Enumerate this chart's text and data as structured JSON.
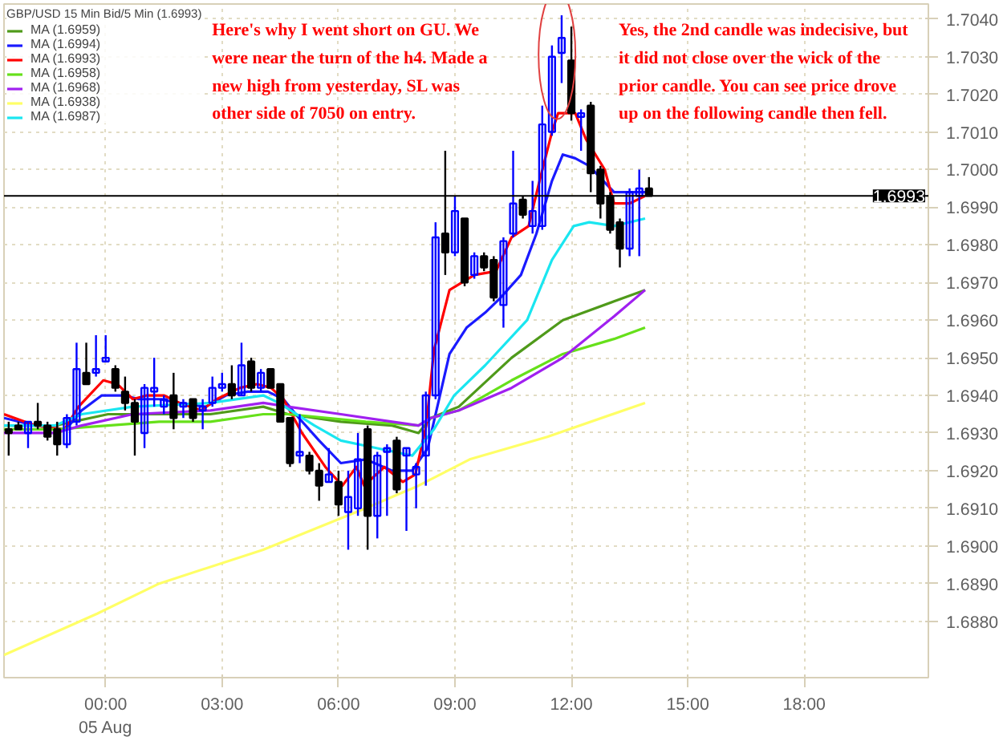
{
  "chart_data": {
    "type": "candlestick",
    "title": "GBP/USD 15 Min Bid/5 Min (1.6993)",
    "x": [
      -2.5,
      -2.25,
      -2,
      -1.75,
      -1.5,
      -1.25,
      -1,
      -0.75,
      -0.5,
      -0.25,
      0,
      0.25,
      0.5,
      0.75,
      1,
      1.25,
      1.5,
      1.75,
      2,
      2.25,
      2.5,
      2.75,
      3,
      3.25,
      3.5,
      3.75,
      4,
      4.25,
      4.5,
      4.75,
      5,
      5.25,
      5.5,
      5.75,
      6,
      6.25,
      6.5,
      6.75,
      7,
      7.25,
      7.5,
      7.75,
      8,
      8.25,
      8.5,
      8.75,
      9,
      9.25,
      9.5,
      9.75,
      10,
      10.25,
      10.5,
      10.75,
      11,
      11.25,
      11.5,
      11.75,
      12,
      12.25,
      12.5,
      12.75,
      13,
      13.25,
      13.5,
      13.75,
      14
    ],
    "ohlc": [
      [
        1.6931,
        1.6933,
        1.6924,
        1.693
      ],
      [
        1.6932,
        1.6933,
        1.6931,
        1.6931
      ],
      [
        1.693,
        1.6933,
        1.6926,
        1.6933
      ],
      [
        1.6933,
        1.6938,
        1.6931,
        1.6932
      ],
      [
        1.6932,
        1.6933,
        1.6928,
        1.6929
      ],
      [
        1.6931,
        1.6933,
        1.6924,
        1.6927
      ],
      [
        1.6927,
        1.6935,
        1.6926,
        1.6934
      ],
      [
        1.6933,
        1.6954,
        1.6932,
        1.6947
      ],
      [
        1.6946,
        1.6954,
        1.6943,
        1.6943
      ],
      [
        1.6946,
        1.6956,
        1.6945,
        1.6947
      ],
      [
        1.6949,
        1.6956,
        1.6949,
        1.695
      ],
      [
        1.6947,
        1.6948,
        1.6941,
        1.6942
      ],
      [
        1.6941,
        1.6945,
        1.6936,
        1.6938
      ],
      [
        1.6938,
        1.6939,
        1.6924,
        1.6933
      ],
      [
        1.693,
        1.6943,
        1.6926,
        1.6942
      ],
      [
        1.6941,
        1.695,
        1.6937,
        1.6942
      ],
      [
        1.6937,
        1.694,
        1.6935,
        1.6939
      ],
      [
        1.694,
        1.6946,
        1.6931,
        1.6934
      ],
      [
        1.6937,
        1.6939,
        1.6934,
        1.6938
      ],
      [
        1.6939,
        1.6939,
        1.6933,
        1.6934
      ],
      [
        1.6936,
        1.6939,
        1.6931,
        1.6937
      ],
      [
        1.6938,
        1.6945,
        1.6937,
        1.6942
      ],
      [
        1.6942,
        1.6946,
        1.6941,
        1.6943
      ],
      [
        1.6943,
        1.6948,
        1.6939,
        1.694
      ],
      [
        1.694,
        1.6954,
        1.694,
        1.6948
      ],
      [
        1.6949,
        1.695,
        1.6941,
        1.6942
      ],
      [
        1.6942,
        1.6947,
        1.6941,
        1.6946
      ],
      [
        1.6947,
        1.6947,
        1.6942,
        1.6942
      ],
      [
        1.6943,
        1.6943,
        1.6933,
        1.6933
      ],
      [
        1.6934,
        1.6934,
        1.6921,
        1.6922
      ],
      [
        1.6924,
        1.6935,
        1.6922,
        1.6925
      ],
      [
        1.6924,
        1.6925,
        1.6919,
        1.692
      ],
      [
        1.692,
        1.6922,
        1.6912,
        1.6916
      ],
      [
        1.6917,
        1.6926,
        1.6917,
        1.6919
      ],
      [
        1.6917,
        1.692,
        1.6908,
        1.6911
      ],
      [
        1.6909,
        1.692,
        1.6899,
        1.6913
      ],
      [
        1.691,
        1.693,
        1.6908,
        1.6923
      ],
      [
        1.6931,
        1.6932,
        1.6899,
        1.6908
      ],
      [
        1.6908,
        1.6925,
        1.6902,
        1.6924
      ],
      [
        1.6925,
        1.6927,
        1.6908,
        1.6926
      ],
      [
        1.6928,
        1.6929,
        1.6914,
        1.6915
      ],
      [
        1.6924,
        1.6926,
        1.6904,
        1.6926
      ],
      [
        1.6919,
        1.6922,
        1.691,
        1.6921
      ],
      [
        1.6924,
        1.6941,
        1.6916,
        1.694
      ],
      [
        1.694,
        1.6986,
        1.6939,
        1.6982
      ],
      [
        1.6983,
        1.7005,
        1.6972,
        1.6978
      ],
      [
        1.6978,
        1.6993,
        1.6977,
        1.6989
      ],
      [
        1.6987,
        1.6987,
        1.6969,
        1.697
      ],
      [
        1.6972,
        1.6978,
        1.6971,
        1.6977
      ],
      [
        1.6977,
        1.6978,
        1.6973,
        1.6974
      ],
      [
        1.6976,
        1.6977,
        1.6965,
        1.6966
      ],
      [
        1.6964,
        1.6982,
        1.6958,
        1.6981
      ],
      [
        1.6983,
        1.7005,
        1.6982,
        1.6991
      ],
      [
        1.6992,
        1.6993,
        1.6987,
        1.6988
      ],
      [
        1.6985,
        1.6997,
        1.6983,
        1.6989
      ],
      [
        1.6985,
        1.7017,
        1.6984,
        1.7012
      ],
      [
        1.701,
        1.7033,
        1.7009,
        1.703
      ],
      [
        1.7031,
        1.7041,
        1.7023,
        1.7035
      ],
      [
        1.7029,
        1.7038,
        1.7013,
        1.7015
      ],
      [
        1.7014,
        1.7016,
        1.7005,
        1.7015
      ],
      [
        1.7017,
        1.7018,
        1.6994,
        1.6999
      ],
      [
        1.7,
        1.7001,
        1.6987,
        1.6991
      ],
      [
        1.6993,
        1.6994,
        1.6983,
        1.6984
      ],
      [
        1.6986,
        1.6987,
        1.6974,
        1.6979
      ],
      [
        1.6979,
        1.6995,
        1.6977,
        1.6994
      ],
      [
        1.6993,
        1.7,
        1.6977,
        1.6995
      ],
      [
        1.6995,
        1.6998,
        1.6993,
        1.6993
      ]
    ],
    "colors": [
      "#000000",
      "#000000",
      "#0000ff",
      "#000000",
      "#000000",
      "#000000",
      "#0000ff",
      "#0000ff",
      "#000000",
      "#0000ff",
      "#0000ff",
      "#000000",
      "#000000",
      "#000000",
      "#0000ff",
      "#0000ff",
      "#0000ff",
      "#000000",
      "#0000ff",
      "#000000",
      "#0000ff",
      "#0000ff",
      "#0000ff",
      "#000000",
      "#0000ff",
      "#000000",
      "#0000ff",
      "#000000",
      "#000000",
      "#000000",
      "#0000ff",
      "#000000",
      "#000000",
      "#0000ff",
      "#000000",
      "#0000ff",
      "#0000ff",
      "#000000",
      "#0000ff",
      "#0000ff",
      "#000000",
      "#0000ff",
      "#0000ff",
      "#0000ff",
      "#0000ff",
      "#000000",
      "#0000ff",
      "#000000",
      "#0000ff",
      "#000000",
      "#000000",
      "#0000ff",
      "#0000ff",
      "#000000",
      "#0000ff",
      "#0000ff",
      "#0000ff",
      "#0000ff",
      "#000000",
      "#0000ff",
      "#000000",
      "#000000",
      "#000000",
      "#000000",
      "#0000ff",
      "#0000ff",
      "#000000"
    ],
    "series": [
      {
        "type": "line",
        "name": "MA (1.6959)",
        "color": "#4f9a1a",
        "x": [
          -2.62,
          -1.3,
          0.06,
          1.38,
          2.7,
          4.06,
          4.7,
          6.06,
          7.38,
          8.06,
          8.38,
          9.1,
          10.46,
          11.78,
          13.1,
          13.9
        ],
        "values": [
          1.6932,
          1.6932,
          1.6935,
          1.6935,
          1.6935,
          1.6937,
          1.6935,
          1.6933,
          1.6932,
          1.693,
          1.6934,
          1.6937,
          1.695,
          1.696,
          1.6965,
          1.6968
        ]
      },
      {
        "type": "line",
        "name": "MA (1.6994)",
        "color": "#1a1aff",
        "x": [
          -2.62,
          -1.82,
          -1.02,
          -0.62,
          -0.1,
          0.46,
          0.86,
          1.38,
          1.9,
          2.58,
          3.1,
          3.66,
          4.18,
          4.58,
          4.98,
          5.5,
          6.06,
          6.7,
          7.38,
          7.9,
          8.3,
          8.86,
          9.3,
          9.78,
          10.18,
          10.7,
          11.1,
          11.5,
          11.78,
          12.1,
          12.46,
          13.1,
          13.9
        ],
        "values": [
          1.6934,
          1.6932,
          1.6931,
          1.6936,
          1.694,
          1.694,
          1.6939,
          1.6939,
          1.6938,
          1.6937,
          1.694,
          1.6941,
          1.6941,
          1.6939,
          1.6934,
          1.6928,
          1.6922,
          1.6923,
          1.692,
          1.692,
          1.6926,
          1.6951,
          1.6958,
          1.6962,
          1.6966,
          1.6972,
          1.6983,
          1.6997,
          1.7004,
          1.7003,
          1.7001,
          1.6994,
          1.6994
        ]
      },
      {
        "type": "line",
        "name": "MA (1.6993)",
        "color": "#ff0000",
        "x": [
          -2.62,
          -1.82,
          -1.06,
          -0.7,
          -0.06,
          0.3,
          0.7,
          1.06,
          1.5,
          1.9,
          2.46,
          2.86,
          3.46,
          3.9,
          4.26,
          4.58,
          5.06,
          5.66,
          6.1,
          6.46,
          6.66,
          7.18,
          7.66,
          7.98,
          8.26,
          8.46,
          8.86,
          9.5,
          10.06,
          10.46,
          10.9,
          11.18,
          11.5,
          11.66,
          12.1,
          12.38,
          12.86,
          13.1,
          13.5,
          13.9
        ],
        "values": [
          1.6935,
          1.6932,
          1.6931,
          1.6937,
          1.6944,
          1.6943,
          1.6939,
          1.694,
          1.694,
          1.6938,
          1.6936,
          1.6939,
          1.6942,
          1.6943,
          1.6942,
          1.6939,
          1.693,
          1.6921,
          1.6916,
          1.6921,
          1.6916,
          1.6921,
          1.6917,
          1.6919,
          1.6932,
          1.6952,
          1.6968,
          1.6972,
          1.6973,
          1.6982,
          1.6985,
          1.6997,
          1.701,
          1.7015,
          1.7015,
          1.7008,
          1.7,
          1.6991,
          1.6991,
          1.6993
        ]
      },
      {
        "type": "line",
        "name": "MA (1.6958)",
        "color": "#66e01a",
        "x": [
          -2.62,
          -1.3,
          0.06,
          1.38,
          2.7,
          4.06,
          4.7,
          6.7,
          8.06,
          8.38,
          9.1,
          10.46,
          11.78,
          13.1,
          13.9
        ],
        "values": [
          1.6931,
          1.6931,
          1.6932,
          1.6933,
          1.6933,
          1.6935,
          1.6935,
          1.6933,
          1.6932,
          1.6934,
          1.6936,
          1.6944,
          1.6951,
          1.6955,
          1.6958
        ]
      },
      {
        "type": "line",
        "name": "MA (1.6968)",
        "color": "#a020f0",
        "x": [
          -2.62,
          -1.3,
          -0.62,
          0.7,
          2.7,
          4.06,
          4.7,
          6.06,
          7.38,
          8.06,
          8.38,
          9.1,
          10.46,
          11.78,
          13.1,
          13.9
        ],
        "values": [
          1.693,
          1.693,
          1.6932,
          1.6935,
          1.6936,
          1.6938,
          1.6937,
          1.6935,
          1.6933,
          1.6932,
          1.6934,
          1.6936,
          1.6942,
          1.695,
          1.6961,
          1.6968
        ]
      },
      {
        "type": "line",
        "name": "MA (1.6938)",
        "color": "#ffff66",
        "x": [
          -2.62,
          -0.22,
          1.38,
          4.06,
          6.7,
          8.06,
          9.38,
          11.38,
          13.9
        ],
        "values": [
          1.6871,
          1.6882,
          1.689,
          1.6899,
          1.691,
          1.6916,
          1.6923,
          1.6929,
          1.6938
        ]
      },
      {
        "type": "line",
        "name": "MA (1.6987)",
        "color": "#1ae6f0",
        "x": [
          -2.62,
          -1.3,
          -0.62,
          0.7,
          2.7,
          4.06,
          4.46,
          5.38,
          6.06,
          6.98,
          7.9,
          8.46,
          8.98,
          9.78,
          10.86,
          11.5,
          12.06,
          12.46,
          13.1,
          13.9
        ],
        "values": [
          1.6932,
          1.6932,
          1.6935,
          1.6937,
          1.6938,
          1.694,
          1.6938,
          1.6932,
          1.6928,
          1.6926,
          1.6924,
          1.6931,
          1.694,
          1.6948,
          1.696,
          1.6976,
          1.6985,
          1.6986,
          1.6985,
          1.6987
        ]
      }
    ],
    "xlim": [
      -2.62,
      21.2
    ],
    "ylim": [
      1.6865,
      1.7044
    ],
    "xticks": [
      {
        "value": 0,
        "label": "00:00\n05 Aug"
      },
      {
        "value": 3,
        "label": "03:00"
      },
      {
        "value": 6,
        "label": "06:00"
      },
      {
        "value": 9,
        "label": "09:00"
      },
      {
        "value": 12,
        "label": "12:00"
      },
      {
        "value": 15,
        "label": "15:00"
      },
      {
        "value": 18,
        "label": "18:00"
      }
    ],
    "yticks": [
      {
        "value": 1.688,
        "label": "1.6880"
      },
      {
        "value": 1.689,
        "label": "1.6890"
      },
      {
        "value": 1.69,
        "label": "1.6900"
      },
      {
        "value": 1.691,
        "label": "1.6910"
      },
      {
        "value": 1.692,
        "label": "1.6920"
      },
      {
        "value": 1.693,
        "label": "1.6930"
      },
      {
        "value": 1.694,
        "label": "1.6940"
      },
      {
        "value": 1.695,
        "label": "1.6950"
      },
      {
        "value": 1.696,
        "label": "1.6960"
      },
      {
        "value": 1.697,
        "label": "1.6970"
      },
      {
        "value": 1.698,
        "label": "1.6980"
      },
      {
        "value": 1.699,
        "label": "1.6990"
      },
      {
        "value": 1.7,
        "label": "1.7000"
      },
      {
        "value": 1.701,
        "label": "1.7010"
      },
      {
        "value": 1.702,
        "label": "1.7020"
      },
      {
        "value": 1.703,
        "label": "1.7030"
      },
      {
        "value": 1.704,
        "label": "1.7040"
      }
    ],
    "ref_lines": [
      {
        "axis": "y",
        "value": 1.6993,
        "label": "1.6993",
        "color": "#000000"
      }
    ],
    "annotations": [
      "Here's why I went short on GU.  We\nwere near the turn of the h4.  Made a\nnew high from yesterday, SL was\nother side of 7050 on entry.",
      "Yes, the 2nd candle was indecisive, but\nit did not close over the wick of the\nprior candle.  You can see price drove\nup on the following candle then fell."
    ],
    "grid": true,
    "legend": "top left"
  }
}
